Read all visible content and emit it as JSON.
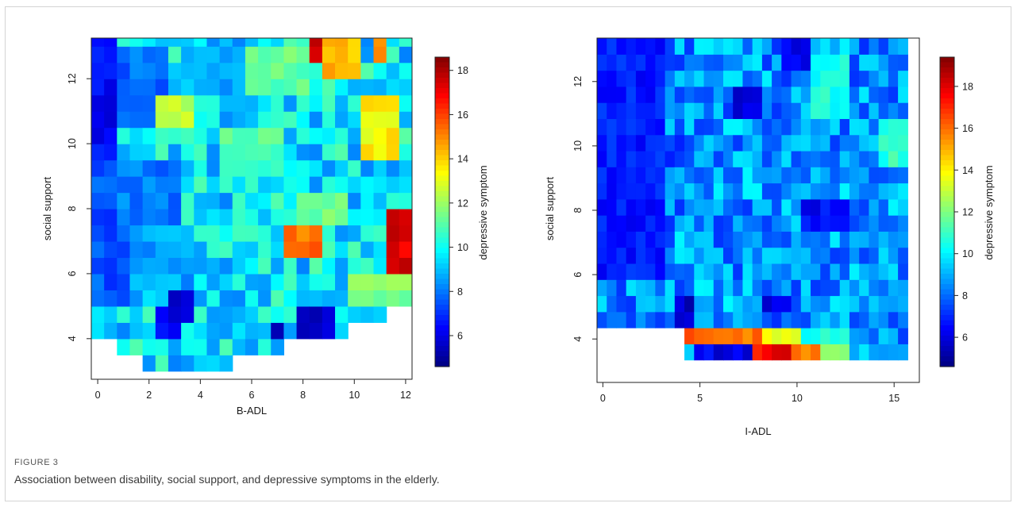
{
  "figure": {
    "label": "FIGURE 3",
    "caption": "Association between disability, social support, and depressive symptoms in the elderly."
  },
  "colormap": [
    "#00007f",
    "#0000ff",
    "#007fff",
    "#00ffff",
    "#7fff7f",
    "#ffff00",
    "#ff7f00",
    "#ff0000",
    "#7f0000"
  ],
  "chart_data": [
    {
      "type": "heatmap",
      "title": "",
      "xlabel": "B-ADL",
      "ylabel": "social support",
      "colorbar_label": "depressive symptom",
      "xlim": [
        -0.25,
        12.25
      ],
      "ylim": [
        2.75,
        13.25
      ],
      "x_ticks": [
        0,
        2,
        4,
        6,
        8,
        10,
        12
      ],
      "y_ticks": [
        4,
        6,
        8,
        10,
        12
      ],
      "colorbar_range": [
        4.6,
        18.6
      ],
      "colorbar_ticks": [
        6,
        8,
        10,
        12,
        14,
        16,
        18
      ],
      "grid": {
        "nx": 25,
        "ny": 21,
        "x0": -0.25,
        "dx": 0.5,
        "y0": 3.0,
        "dy": 0.5
      },
      "background_value": 9.6,
      "empty_region_upper_y": [
        4.0,
        4.0,
        3.5,
        3.5,
        3.0,
        3.0,
        3.0,
        3.0,
        3.0,
        3.0,
        3.0,
        3.5,
        3.5,
        3.5,
        3.5,
        4.0,
        4.0,
        4.0,
        4.0,
        4.0,
        4.5,
        4.5,
        4.5,
        5.0,
        5.0
      ],
      "regions": [
        {
          "x": [
            -0.25,
            0.75
          ],
          "y": [
            9.5,
            13.25
          ],
          "value": 6.3
        },
        {
          "x": [
            0.0,
            1.0
          ],
          "y": [
            5.0,
            9.5
          ],
          "value": 7.5
        },
        {
          "x": [
            0.75,
            2.5
          ],
          "y": [
            10.5,
            13.0
          ],
          "value": 7.8
        },
        {
          "x": [
            1.0,
            3.0
          ],
          "y": [
            7.5,
            9.5
          ],
          "value": 8.0
        },
        {
          "x": [
            1.5,
            3.5
          ],
          "y": [
            5.5,
            7.5
          ],
          "value": 8.6
        },
        {
          "x": [
            3.5,
            5.5
          ],
          "y": [
            11.5,
            13.0
          ],
          "value": 8.8
        },
        {
          "x": [
            2.5,
            3.5
          ],
          "y": [
            10.5,
            11.5
          ],
          "value": 12.5
        },
        {
          "x": [
            2.75,
            3.75
          ],
          "y": [
            4.5,
            5.5
          ],
          "value": 5.6
        },
        {
          "x": [
            2.25,
            3.0
          ],
          "y": [
            4.0,
            5.0
          ],
          "value": 6.2
        },
        {
          "x": [
            5.0,
            7.0
          ],
          "y": [
            9.0,
            10.5
          ],
          "value": 11.0
        },
        {
          "x": [
            6.0,
            8.0
          ],
          "y": [
            11.5,
            13.0
          ],
          "value": 11.2
        },
        {
          "x": [
            7.5,
            8.5
          ],
          "y": [
            6.5,
            7.5
          ],
          "value": 15.2
        },
        {
          "x": [
            8.25,
            9.25
          ],
          "y": [
            12.5,
            13.25
          ],
          "value": 17.2
        },
        {
          "x": [
            9.0,
            10.0
          ],
          "y": [
            12.0,
            13.25
          ],
          "value": 14.4
        },
        {
          "x": [
            10.75,
            11.25
          ],
          "y": [
            12.75,
            13.25
          ],
          "value": 15.2
        },
        {
          "x": [
            10.5,
            11.5
          ],
          "y": [
            9.5,
            11.5
          ],
          "value": 13.4
        },
        {
          "x": [
            11.25,
            12.25
          ],
          "y": [
            6.0,
            8.0
          ],
          "value": 17.3
        },
        {
          "x": [
            7.75,
            9.25
          ],
          "y": [
            4.0,
            5.0
          ],
          "value": 5.4
        },
        {
          "x": [
            6.75,
            7.25
          ],
          "y": [
            4.0,
            4.5
          ],
          "value": 5.8
        },
        {
          "x": [
            10.0,
            12.25
          ],
          "y": [
            5.0,
            6.0
          ],
          "value": 11.5
        },
        {
          "x": [
            8.0,
            9.5
          ],
          "y": [
            7.5,
            8.5
          ],
          "value": 11.5
        }
      ]
    },
    {
      "type": "heatmap",
      "title": "",
      "xlabel": "I-ADL",
      "ylabel": "social support",
      "colorbar_label": "depressive symptom",
      "xlim": [
        -0.3,
        16.3
      ],
      "ylim": [
        2.65,
        13.35
      ],
      "x_ticks": [
        0,
        5,
        10,
        15
      ],
      "y_ticks": [
        4,
        6,
        8,
        10,
        12
      ],
      "colorbar_range": [
        4.6,
        19.4
      ],
      "colorbar_ticks": [
        6,
        8,
        10,
        12,
        14,
        16,
        18
      ],
      "grid": {
        "nx": 32,
        "ny": 21,
        "x0": -0.3,
        "dx": 0.5,
        "y0": 2.85,
        "dy": 0.5
      },
      "background_value": 8.6,
      "regions": [
        {
          "x": [
            -0.3,
            3.2
          ],
          "y": [
            6.0,
            13.35
          ],
          "value": 6.8
        },
        {
          "x": [
            2.0,
            4.5
          ],
          "y": [
            9.5,
            10.5
          ],
          "value": 7.2
        },
        {
          "x": [
            6.5,
            8.0
          ],
          "y": [
            11.0,
            12.0
          ],
          "value": 6.2
        },
        {
          "x": [
            9.3,
            10.5
          ],
          "y": [
            12.3,
            13.35
          ],
          "value": 6.0
        },
        {
          "x": [
            10.3,
            12.5
          ],
          "y": [
            7.5,
            8.5
          ],
          "value": 6.5
        },
        {
          "x": [
            3.5,
            4.5
          ],
          "y": [
            4.35,
            5.35
          ],
          "value": 5.6
        },
        {
          "x": [
            8.0,
            9.5
          ],
          "y": [
            4.85,
            5.35
          ],
          "value": 6.2
        },
        {
          "x": [
            10.5,
            12.5
          ],
          "y": [
            11.0,
            13.0
          ],
          "value": 10.5
        },
        {
          "x": [
            14.0,
            15.5
          ],
          "y": [
            9.5,
            11.0
          ],
          "value": 10.8
        },
        {
          "x": [
            4.2,
            8.2
          ],
          "y": [
            3.85,
            4.35
          ],
          "value": 16.0
        },
        {
          "x": [
            8.2,
            10.2
          ],
          "y": [
            3.85,
            4.35
          ],
          "value": 13.5
        },
        {
          "x": [
            10.2,
            12.7
          ],
          "y": [
            3.85,
            4.35
          ],
          "value": 10.6
        },
        {
          "x": [
            4.2,
            4.7
          ],
          "y": [
            3.35,
            3.85
          ],
          "value": 10.0
        },
        {
          "x": [
            4.7,
            7.7
          ],
          "y": [
            3.35,
            3.85
          ],
          "value": 6.2
        },
        {
          "x": [
            7.7,
            8.2
          ],
          "y": [
            3.35,
            3.85
          ],
          "value": 16.8
        },
        {
          "x": [
            8.2,
            9.7
          ],
          "y": [
            3.35,
            3.85
          ],
          "value": 18.2
        },
        {
          "x": [
            9.7,
            11.2
          ],
          "y": [
            3.35,
            3.85
          ],
          "value": 15.6
        },
        {
          "x": [
            11.2,
            12.7
          ],
          "y": [
            3.35,
            3.85
          ],
          "value": 12.5
        },
        {
          "x": [
            15.8,
            16.3
          ],
          "y": [
            2.65,
            5.0
          ],
          "value": 10.5
        }
      ],
      "empty_regions": [
        {
          "x": [
            -0.3,
            4.2
          ],
          "y": [
            2.65,
            4.1
          ]
        },
        {
          "x": [
            4.2,
            15.8
          ],
          "y": [
            2.65,
            3.35
          ]
        }
      ]
    }
  ]
}
